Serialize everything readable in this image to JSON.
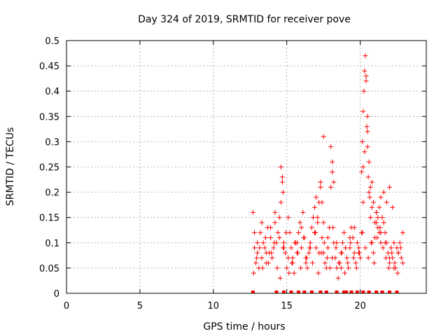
{
  "chart_data": {
    "type": "scatter",
    "title": "Day 324 of 2019, SRMTID for receiver pove",
    "xlabel": "GPS time / hours",
    "ylabel": "SRMTID / TECUs",
    "xlim": [
      0,
      24.5
    ],
    "ylim": [
      0,
      0.5
    ],
    "x_ticks": [
      "0",
      "5",
      "10",
      "15",
      "20"
    ],
    "y_ticks": [
      "0",
      "0.05",
      "0.1",
      "0.15",
      "0.2",
      "0.25",
      "0.3",
      "0.35",
      "0.4",
      "0.45",
      "0.5"
    ],
    "grid": true,
    "marker_color": "#ff0000",
    "series": [
      {
        "x": [
          12.7,
          12.8,
          12.9,
          13.0,
          13.1,
          13.2,
          13.3,
          13.4,
          13.5,
          13.6,
          13.7,
          13.8,
          13.9,
          14.0,
          14.1,
          14.2,
          14.3,
          14.4,
          14.5,
          14.6,
          14.7,
          14.8,
          14.9,
          15.0,
          15.1,
          15.2,
          15.3,
          15.4,
          15.5,
          15.6,
          15.7,
          15.8,
          15.9,
          16.0,
          16.1,
          16.2,
          16.3,
          16.4,
          16.5,
          16.6,
          16.7,
          16.8,
          16.9,
          17.0,
          17.1,
          17.2,
          17.3,
          17.4,
          17.5,
          17.6,
          17.7,
          17.8,
          17.9,
          18.0,
          18.1,
          18.2,
          18.3,
          18.4,
          18.5,
          18.6,
          18.7,
          18.8,
          18.9,
          19.0,
          19.1,
          19.2,
          19.3,
          19.4,
          19.5,
          19.6,
          19.7,
          19.8,
          19.9,
          20.0,
          20.1,
          20.2,
          20.3,
          20.4,
          20.5,
          20.6,
          20.7,
          20.8,
          20.9,
          21.0,
          21.1,
          21.2,
          21.3,
          21.4,
          21.5,
          21.6,
          21.7,
          21.8,
          21.9,
          22.0,
          22.1,
          22.2,
          22.3,
          22.4,
          22.5,
          22.6,
          22.7,
          22.8,
          22.9,
          12.75,
          12.95,
          13.15,
          13.35,
          13.55,
          13.75,
          13.95,
          14.15,
          14.35,
          14.55,
          14.75,
          14.95,
          15.15,
          15.35,
          15.55,
          15.75,
          15.95,
          16.15,
          16.35,
          16.55,
          16.75,
          16.95,
          17.15,
          17.35,
          17.55,
          17.75,
          17.95,
          18.15,
          18.35,
          18.55,
          18.75,
          18.95,
          19.15,
          19.35,
          19.55,
          19.75,
          19.95,
          20.15,
          20.35,
          20.55,
          20.75,
          20.95,
          21.15,
          21.35,
          21.55,
          21.75,
          21.95,
          22.15,
          22.35,
          22.55,
          22.75,
          12.8,
          13.0,
          13.3,
          13.6,
          13.9,
          14.2,
          14.5,
          14.8,
          15.1,
          15.4,
          15.7,
          16.0,
          16.3,
          16.6,
          16.9,
          17.2,
          17.5,
          17.8,
          18.1,
          18.4,
          18.7,
          19.0,
          19.3,
          19.6,
          19.9,
          20.2,
          20.5,
          20.8,
          21.1,
          21.4,
          21.7,
          22.0,
          22.3,
          22.6,
          22.9,
          14.6,
          14.7,
          14.75,
          16.9,
          17.0,
          17.1,
          17.3,
          17.4,
          17.5,
          18.0,
          18.1,
          18.2,
          20.1,
          20.15,
          20.2,
          20.25,
          20.3,
          20.35,
          20.4,
          20.45,
          20.5,
          20.55,
          20.6,
          20.65,
          20.7,
          20.8,
          20.9,
          21.0,
          21.1,
          21.2,
          21.3,
          21.4,
          21.6,
          21.8,
          22.0,
          22.2
        ],
        "y": [
          0.16,
          0.09,
          0.06,
          0.08,
          0.05,
          0.12,
          0.07,
          0.1,
          0.09,
          0.06,
          0.13,
          0.08,
          0.11,
          0.07,
          0.09,
          0.14,
          0.1,
          0.12,
          0.15,
          0.18,
          0.22,
          0.1,
          0.08,
          0.05,
          0.07,
          0.12,
          0.09,
          0.06,
          0.04,
          0.1,
          0.08,
          0.12,
          0.14,
          0.09,
          0.16,
          0.11,
          0.07,
          0.05,
          0.08,
          0.1,
          0.13,
          0.15,
          0.12,
          0.09,
          0.14,
          0.18,
          0.21,
          0.11,
          0.08,
          0.06,
          0.05,
          0.09,
          0.13,
          0.21,
          0.24,
          0.1,
          0.07,
          0.05,
          0.03,
          0.06,
          0.08,
          0.1,
          0.12,
          0.09,
          0.07,
          0.05,
          0.09,
          0.13,
          0.11,
          0.08,
          0.06,
          0.1,
          0.09,
          0.07,
          0.12,
          0.18,
          0.28,
          0.43,
          0.32,
          0.2,
          0.15,
          0.1,
          0.08,
          0.11,
          0.14,
          0.13,
          0.12,
          0.1,
          0.15,
          0.14,
          0.12,
          0.1,
          0.08,
          0.06,
          0.09,
          0.07,
          0.1,
          0.05,
          0.09,
          0.08,
          0.1,
          0.07,
          0.06,
          0.04,
          0.07,
          0.09,
          0.05,
          0.11,
          0.06,
          0.08,
          0.1,
          0.05,
          0.03,
          0.09,
          0.12,
          0.04,
          0.06,
          0.1,
          0.08,
          0.05,
          0.11,
          0.07,
          0.09,
          0.06,
          0.12,
          0.04,
          0.08,
          0.1,
          0.07,
          0.05,
          0.13,
          0.09,
          0.06,
          0.08,
          0.04,
          0.06,
          0.1,
          0.07,
          0.05,
          0.08,
          0.12,
          0.09,
          0.07,
          0.1,
          0.06,
          0.11,
          0.13,
          0.09,
          0.07,
          0.05,
          0.08,
          0.06,
          0.04,
          0.09,
          0.12,
          0.1,
          0.14,
          0.08,
          0.13,
          0.16,
          0.11,
          0.09,
          0.15,
          0.07,
          0.1,
          0.13,
          0.06,
          0.09,
          0.12,
          0.08,
          0.14,
          0.11,
          0.07,
          0.1,
          0.05,
          0.09,
          0.11,
          0.13,
          0.08,
          0.25,
          0.35,
          0.22,
          0.16,
          0.12,
          0.1,
          0.07,
          0.05,
          0.08,
          0.12,
          0.25,
          0.23,
          0.2,
          0.17,
          0.19,
          0.15,
          0.22,
          0.18,
          0.31,
          0.29,
          0.26,
          0.22,
          0.24,
          0.3,
          0.36,
          0.4,
          0.44,
          0.47,
          0.42,
          0.33,
          0.29,
          0.23,
          0.26,
          0.19,
          0.21,
          0.17,
          0.18,
          0.14,
          0.16,
          0.15,
          0.17,
          0.19,
          0.2,
          0.18,
          0.21,
          0.17
        ]
      }
    ],
    "zero_x": [
      12.7,
      14.3,
      14.8,
      15.3,
      15.8,
      16.2,
      16.7,
      17.3,
      17.7,
      18.4,
      18.9,
      19.05,
      19.4,
      19.8,
      20.2,
      20.6,
      21.1,
      21.5,
      22.0,
      22.5
    ]
  }
}
